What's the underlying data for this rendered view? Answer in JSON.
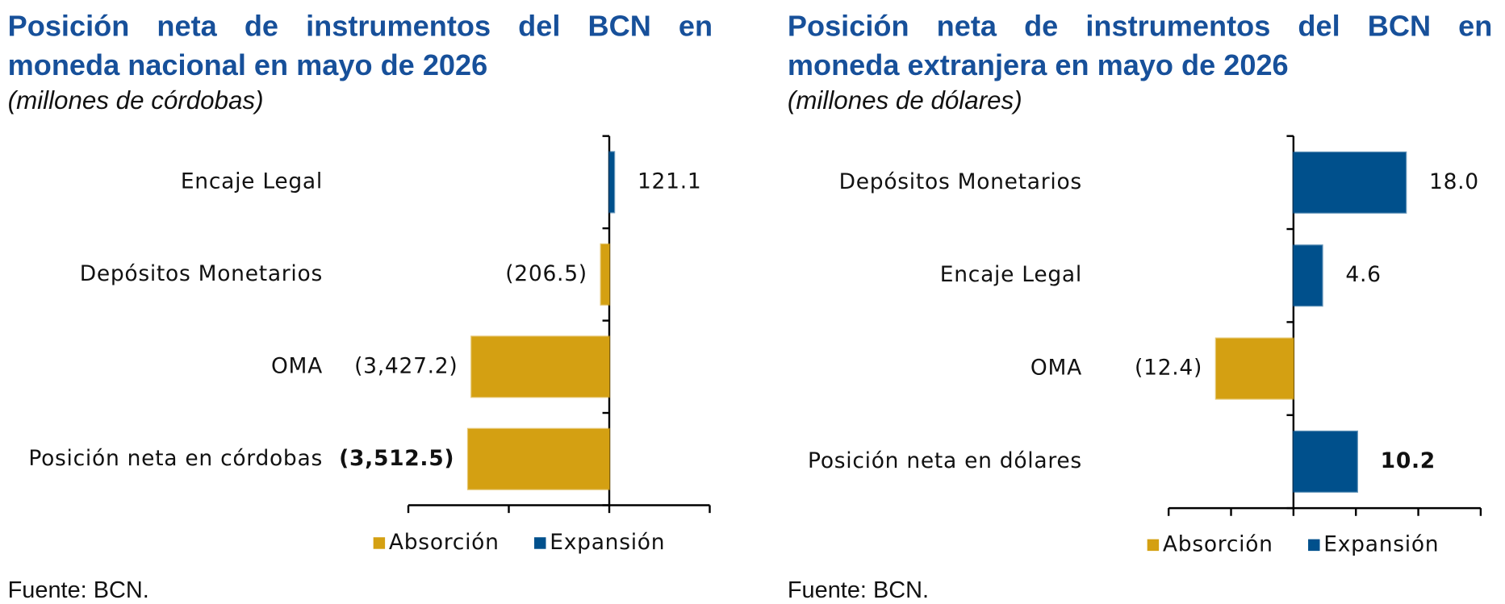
{
  "chart_data": [
    {
      "type": "bar",
      "orientation": "horizontal",
      "title": "Posición neta de instrumentos del BCN en moneda nacional en mayo de 2026",
      "subtitle": "(millones de córdobas)",
      "source": "Fuente: BCN.",
      "categories": [
        "Encaje Legal",
        "Depósitos Monetarios",
        "OMA",
        "Posición neta en córdobas"
      ],
      "values": [
        121.1,
        -206.5,
        -3427.2,
        -3512.5
      ],
      "value_labels": [
        "121.1",
        "(206.5)",
        "(3,427.2)",
        "(3,512.5)"
      ],
      "colors": [
        "#00508c",
        "#d4a012",
        "#d4a012",
        "#d4a012"
      ],
      "legend": [
        {
          "name": "Absorción",
          "color": "#d4a012"
        },
        {
          "name": "Expansión",
          "color": "#00508c"
        }
      ],
      "xlim": [
        -5000,
        2500
      ],
      "xticks": [
        -5000,
        -2500,
        0,
        2500
      ]
    },
    {
      "type": "bar",
      "orientation": "horizontal",
      "title": "Posición neta de instrumentos del BCN en moneda extranjera en mayo de 2026",
      "subtitle": "(millones de dólares)",
      "source": "Fuente: BCN.",
      "categories": [
        "Depósitos Monetarios",
        "Encaje Legal",
        "OMA",
        "Posición neta en dólares"
      ],
      "values": [
        18.0,
        4.6,
        -12.4,
        10.2
      ],
      "value_labels": [
        "18.0",
        "4.6",
        "(12.4)",
        "10.2"
      ],
      "colors": [
        "#00508c",
        "#00508c",
        "#d4a012",
        "#00508c"
      ],
      "legend": [
        {
          "name": "Absorción",
          "color": "#d4a012"
        },
        {
          "name": "Expansión",
          "color": "#00508c"
        }
      ],
      "xlim": [
        -20,
        30
      ],
      "xticks": [
        -20,
        -10,
        0,
        10,
        20,
        30
      ]
    }
  ]
}
